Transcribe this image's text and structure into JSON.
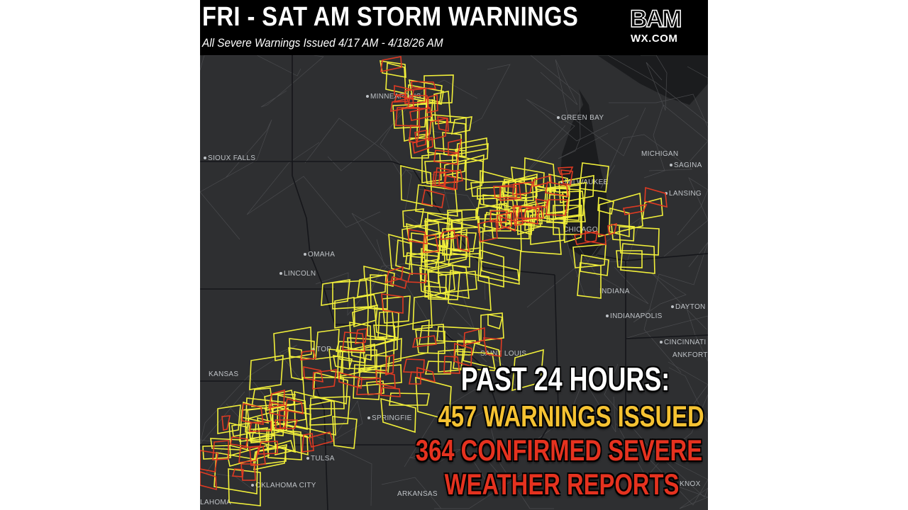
{
  "header": {
    "title": "FRI - SAT AM STORM WARNINGS",
    "subtitle": "All Severe Warnings Issued 4/17 AM - 4/18/26 AM"
  },
  "logo": {
    "brand": "BAM",
    "site": "WX.COM"
  },
  "map": {
    "cities": [
      {
        "name": "MINNEAPOLIS",
        "dot": true
      },
      {
        "name": "GREEN BAY",
        "dot": true
      },
      {
        "name": "SIOUX FALLS",
        "dot": true
      },
      {
        "name": "MILWAUKEE",
        "dot": true
      },
      {
        "name": "MICHIGAN",
        "dot": false
      },
      {
        "name": "SAGINA",
        "dot": true
      },
      {
        "name": "LANSING",
        "dot": true
      },
      {
        "name": "CHICAGO",
        "dot": false
      },
      {
        "name": "OMAHA",
        "dot": true
      },
      {
        "name": "LINCOLN",
        "dot": true
      },
      {
        "name": "INDIANA",
        "dot": false
      },
      {
        "name": "INDIANAPOLIS",
        "dot": true
      },
      {
        "name": "DAYTON",
        "dot": true
      },
      {
        "name": "CINCINNATI",
        "dot": true
      },
      {
        "name": "TOP",
        "dot": true
      },
      {
        "name": "SAINT LOUIS",
        "dot": false
      },
      {
        "name": "KANSAS",
        "dot": false
      },
      {
        "name": "ANKFORT",
        "dot": false
      },
      {
        "name": "SPRINGFIE",
        "dot": true
      },
      {
        "name": "TULSA",
        "dot": true
      },
      {
        "name": "OKLAHOMA CITY",
        "dot": true
      },
      {
        "name": "ARKANSAS",
        "dot": false
      },
      {
        "name": "LAHOMA",
        "dot": false
      },
      {
        "name": "KNOX",
        "dot": true
      }
    ],
    "legend_colors": {
      "severe_thunderstorm_warning": "#f2f03a",
      "tornado_warning": "#e03a22"
    }
  },
  "stats": {
    "heading": "PAST 24 HOURS:",
    "warnings": "457 WARNINGS ISSUED",
    "reports_line1": "364 CONFIRMED SEVERE",
    "reports_line2": "WEATHER REPORTS",
    "colors": {
      "heading": "#ffffff",
      "warnings": "#f5c232",
      "reports": "#e5321f"
    }
  }
}
